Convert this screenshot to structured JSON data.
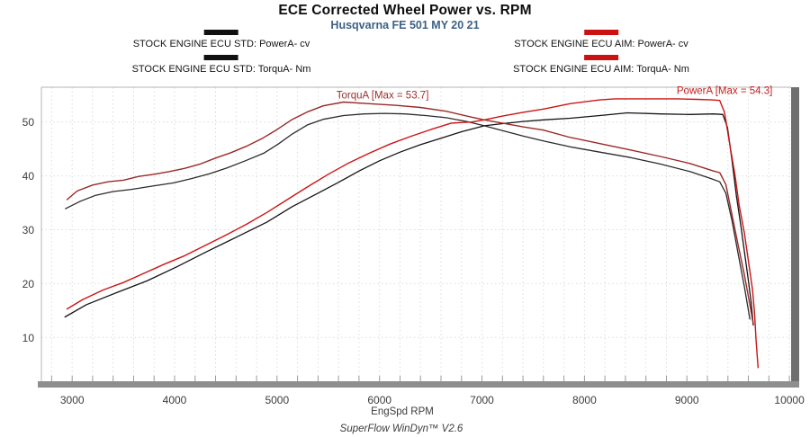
{
  "header": {
    "title": "ECE Corrected Wheel Power vs. RPM",
    "subtitle": "Husqvarna FE 501 MY 20 21",
    "subtitle_color": "#3d6185"
  },
  "legend": {
    "items": [
      {
        "label": "STOCK ENGINE ECU STD: PowerA- cv",
        "color": "#111111"
      },
      {
        "label": "STOCK ENGINE ECU STD: TorquA- Nm",
        "color": "#111111"
      },
      {
        "label": "STOCK ENGINE ECU AIM: PowerA- cv",
        "color": "#cc1111"
      },
      {
        "label": "STOCK ENGINE ECU AIM: TorquA- Nm",
        "color": "#cc1111"
      }
    ]
  },
  "chart_data": {
    "type": "line",
    "title": "ECE Corrected Wheel Power vs. RPM",
    "xlabel": "EngSpd RPM",
    "ylabel": "",
    "x_range": [
      2700,
      10017
    ],
    "y_range": [
      1.87,
      56.46
    ],
    "x_ticks": [
      3000,
      4000,
      5000,
      6000,
      7000,
      8000,
      9000,
      10000
    ],
    "y_ticks": [
      10,
      20,
      30,
      40,
      50
    ],
    "x_grid_step": 200,
    "y_grid_step": 10,
    "grid": "dotted",
    "legend_position": "top",
    "annotations": [
      {
        "text": "TorquA [Max = 53.7]",
        "x": 6030,
        "y": 54.4,
        "color": "#a03030"
      },
      {
        "text": "PowerA [Max = 54.3]",
        "x": 9368,
        "y": 55.2,
        "color": "#c32020"
      }
    ],
    "series": [
      {
        "name": "STOCK ENGINE ECU STD: TorquA- Nm",
        "unit": "Nm",
        "color": "#2b2b2b",
        "width": 1.3,
        "points": [
          [
            2935,
            33.9
          ],
          [
            3080,
            35.3
          ],
          [
            3230,
            36.4
          ],
          [
            3400,
            37.1
          ],
          [
            3580,
            37.5
          ],
          [
            3780,
            38.1
          ],
          [
            3990,
            38.7
          ],
          [
            4165,
            39.5
          ],
          [
            4340,
            40.4
          ],
          [
            4515,
            41.5
          ],
          [
            4690,
            42.8
          ],
          [
            4870,
            44.2
          ],
          [
            5010,
            45.9
          ],
          [
            5150,
            47.8
          ],
          [
            5300,
            49.5
          ],
          [
            5450,
            50.5
          ],
          [
            5650,
            51.2
          ],
          [
            5850,
            51.5
          ],
          [
            6050,
            51.6
          ],
          [
            6250,
            51.5
          ],
          [
            6450,
            51.2
          ],
          [
            6650,
            50.8
          ],
          [
            6850,
            50.1
          ],
          [
            7023,
            49.3
          ],
          [
            7200,
            48.4
          ],
          [
            7400,
            47.4
          ],
          [
            7600,
            46.5
          ],
          [
            7860,
            45.4
          ],
          [
            8150,
            44.4
          ],
          [
            8450,
            43.4
          ],
          [
            8740,
            42.2
          ],
          [
            9030,
            40.8
          ],
          [
            9235,
            39.5
          ],
          [
            9320,
            38.9
          ],
          [
            9380,
            36.8
          ],
          [
            9440,
            31.7
          ],
          [
            9500,
            25.6
          ],
          [
            9560,
            19.5
          ],
          [
            9615,
            13.4
          ]
        ]
      },
      {
        "name": "STOCK ENGINE ECU STD: PowerA- cv",
        "unit": "cv",
        "color": "#141414",
        "width": 1.3,
        "points": [
          [
            2930,
            13.8
          ],
          [
            3140,
            16.1
          ],
          [
            3430,
            18.3
          ],
          [
            3730,
            20.5
          ],
          [
            4020,
            23.1
          ],
          [
            4310,
            25.9
          ],
          [
            4600,
            28.6
          ],
          [
            4900,
            31.4
          ],
          [
            5150,
            34.3
          ],
          [
            5400,
            36.8
          ],
          [
            5600,
            38.8
          ],
          [
            5800,
            40.9
          ],
          [
            6000,
            42.8
          ],
          [
            6200,
            44.4
          ],
          [
            6400,
            45.8
          ],
          [
            6600,
            47.0
          ],
          [
            6800,
            48.2
          ],
          [
            7023,
            49.3
          ],
          [
            7200,
            49.7
          ],
          [
            7400,
            50.1
          ],
          [
            7600,
            50.4
          ],
          [
            7860,
            50.7
          ],
          [
            8150,
            51.2
          ],
          [
            8420,
            51.7
          ],
          [
            8740,
            51.5
          ],
          [
            9030,
            51.4
          ],
          [
            9260,
            51.5
          ],
          [
            9350,
            51.4
          ],
          [
            9396,
            49.0
          ],
          [
            9440,
            42.9
          ],
          [
            9484,
            36.2
          ],
          [
            9528,
            30.6
          ],
          [
            9572,
            24.5
          ],
          [
            9600,
            20.6
          ],
          [
            9625,
            16.8
          ],
          [
            9648,
            12.3
          ]
        ]
      },
      {
        "name": "STOCK ENGINE ECU AIM: TorquA- Nm",
        "unit": "Nm",
        "color": "#992929",
        "width": 1.4,
        "max": 53.7,
        "points": [
          [
            2950,
            35.6
          ],
          [
            3050,
            37.2
          ],
          [
            3200,
            38.3
          ],
          [
            3350,
            38.9
          ],
          [
            3500,
            39.2
          ],
          [
            3650,
            39.9
          ],
          [
            3800,
            40.3
          ],
          [
            3950,
            40.8
          ],
          [
            4100,
            41.4
          ],
          [
            4250,
            42.2
          ],
          [
            4400,
            43.3
          ],
          [
            4550,
            44.3
          ],
          [
            4700,
            45.5
          ],
          [
            4850,
            46.9
          ],
          [
            5000,
            48.6
          ],
          [
            5150,
            50.5
          ],
          [
            5300,
            51.9
          ],
          [
            5450,
            53.0
          ],
          [
            5650,
            53.7
          ],
          [
            5900,
            53.4
          ],
          [
            6150,
            53.1
          ],
          [
            6400,
            52.7
          ],
          [
            6650,
            52.0
          ],
          [
            6900,
            50.9
          ],
          [
            7023,
            50.4
          ],
          [
            7200,
            49.8
          ],
          [
            7400,
            49.1
          ],
          [
            7600,
            48.5
          ],
          [
            7850,
            47.2
          ],
          [
            8150,
            46.0
          ],
          [
            8450,
            44.8
          ],
          [
            8740,
            43.6
          ],
          [
            9030,
            42.3
          ],
          [
            9260,
            40.9
          ],
          [
            9320,
            40.6
          ],
          [
            9380,
            38.4
          ],
          [
            9440,
            32.8
          ],
          [
            9500,
            27.2
          ],
          [
            9560,
            21.7
          ],
          [
            9615,
            16.1
          ],
          [
            9645,
            12.8
          ]
        ]
      },
      {
        "name": "STOCK ENGINE ECU AIM: PowerA- cv",
        "unit": "cv",
        "color": "#cc1414",
        "width": 1.4,
        "max": 54.3,
        "points": [
          [
            2950,
            15.3
          ],
          [
            3100,
            17.0
          ],
          [
            3300,
            18.8
          ],
          [
            3500,
            20.2
          ],
          [
            3700,
            21.9
          ],
          [
            3900,
            23.6
          ],
          [
            4100,
            25.2
          ],
          [
            4300,
            27.1
          ],
          [
            4500,
            29.0
          ],
          [
            4700,
            31.0
          ],
          [
            4900,
            33.2
          ],
          [
            5100,
            35.6
          ],
          [
            5300,
            38.0
          ],
          [
            5500,
            40.3
          ],
          [
            5700,
            42.4
          ],
          [
            5900,
            44.2
          ],
          [
            6100,
            45.9
          ],
          [
            6300,
            47.3
          ],
          [
            6500,
            48.6
          ],
          [
            6700,
            49.8
          ],
          [
            6900,
            50.0
          ],
          [
            7023,
            50.4
          ],
          [
            7200,
            51.1
          ],
          [
            7400,
            51.8
          ],
          [
            7600,
            52.4
          ],
          [
            7860,
            53.4
          ],
          [
            8150,
            54.1
          ],
          [
            8300,
            54.3
          ],
          [
            8600,
            54.3
          ],
          [
            8900,
            54.3
          ],
          [
            9100,
            54.2
          ],
          [
            9240,
            54.1
          ],
          [
            9320,
            54.0
          ],
          [
            9367,
            51.8
          ],
          [
            9410,
            46.8
          ],
          [
            9470,
            40.1
          ],
          [
            9510,
            34.5
          ],
          [
            9560,
            29.5
          ],
          [
            9615,
            22.3
          ],
          [
            9640,
            18.9
          ],
          [
            9660,
            14.5
          ],
          [
            9675,
            9.4
          ],
          [
            9695,
            4.4
          ]
        ]
      }
    ]
  },
  "footer": {
    "watermark": "SuperFlow WinDyn™ V2.6"
  }
}
